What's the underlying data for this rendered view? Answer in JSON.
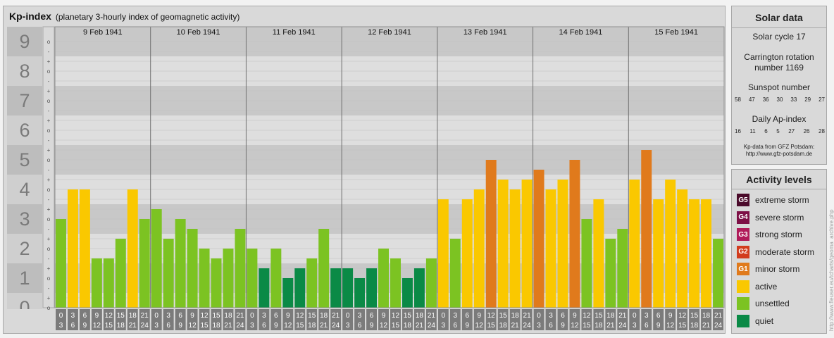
{
  "header": {
    "title": "Kp-index",
    "subtitle": "(planetary 3-hourly index of geomagnetic activity)"
  },
  "chart_data": {
    "type": "bar",
    "y_axis_labels": [
      "0",
      "1",
      "2",
      "3",
      "4",
      "5",
      "6",
      "7",
      "8",
      "9"
    ],
    "sub_marks": [
      "o",
      "+",
      "-"
    ],
    "ylim": [
      0,
      9
    ],
    "days": [
      "9 Feb 1941",
      "10 Feb 1941",
      "11 Feb 1941",
      "12 Feb 1941",
      "13 Feb 1941",
      "14 Feb 1941",
      "15 Feb 1941"
    ],
    "interval_starts": [
      "0",
      "3",
      "6",
      "9",
      "12",
      "15",
      "18",
      "21"
    ],
    "interval_ends": [
      "3",
      "6",
      "9",
      "12",
      "15",
      "18",
      "21",
      "24"
    ],
    "values": [
      [
        3.0,
        4.0,
        4.0,
        1.667,
        1.667,
        2.333,
        4.0,
        3.0
      ],
      [
        3.333,
        2.333,
        3.0,
        2.667,
        2.0,
        1.667,
        2.0,
        2.667
      ],
      [
        2.0,
        1.333,
        2.0,
        1.0,
        1.333,
        1.667,
        2.667,
        1.333
      ],
      [
        1.333,
        1.0,
        1.333,
        2.0,
        1.667,
        1.0,
        1.333,
        1.667
      ],
      [
        3.667,
        2.333,
        3.667,
        4.0,
        5.0,
        4.333,
        4.0,
        4.333
      ],
      [
        4.667,
        4.0,
        4.333,
        5.0,
        3.0,
        3.667,
        2.333,
        2.667
      ],
      [
        4.333,
        5.333,
        3.667,
        4.333,
        4.0,
        3.667,
        3.667,
        2.333
      ]
    ],
    "grid": true,
    "legend": "right"
  },
  "solar": {
    "title": "Solar data",
    "cycle": "Solar cycle 17",
    "carrington_line1": "Carrington rotation",
    "carrington_line2": "number 1169",
    "sunspot_title": "Sunspot number",
    "sunspot_values": [
      "58",
      "47",
      "36",
      "30",
      "33",
      "29",
      "27"
    ],
    "ap_title": "Daily Ap-index",
    "ap_values": [
      "16",
      "11",
      "6",
      "5",
      "27",
      "26",
      "28"
    ],
    "credit_line1": "Kp-data from GFZ Potsdam:",
    "credit_line2": "http://www.gfz-potsdam.de"
  },
  "levels": {
    "title": "Activity levels",
    "items": [
      {
        "code": "G5",
        "label": "extreme storm",
        "color": "#4a0a2a"
      },
      {
        "code": "G4",
        "label": "severe storm",
        "color": "#7d0f45"
      },
      {
        "code": "G3",
        "label": "strong storm",
        "color": "#b01b5a"
      },
      {
        "code": "G2",
        "label": "moderate storm",
        "color": "#d23c1e"
      },
      {
        "code": "G1",
        "label": "minor storm",
        "color": "#e07a1c"
      },
      {
        "code": "",
        "label": "active",
        "color": "#fac800"
      },
      {
        "code": "",
        "label": "unsettled",
        "color": "#7cc322"
      },
      {
        "code": "",
        "label": "quiet",
        "color": "#0a8a46"
      }
    ]
  },
  "colors": {
    "quiet": "#0a8a46",
    "unsettled": "#7cc322",
    "active": "#fac800",
    "minor": "#e07a1c",
    "moderate": "#d23c1e"
  },
  "watermark": "http://www.fleuser.eu/tcharts/geoma_archive.php"
}
